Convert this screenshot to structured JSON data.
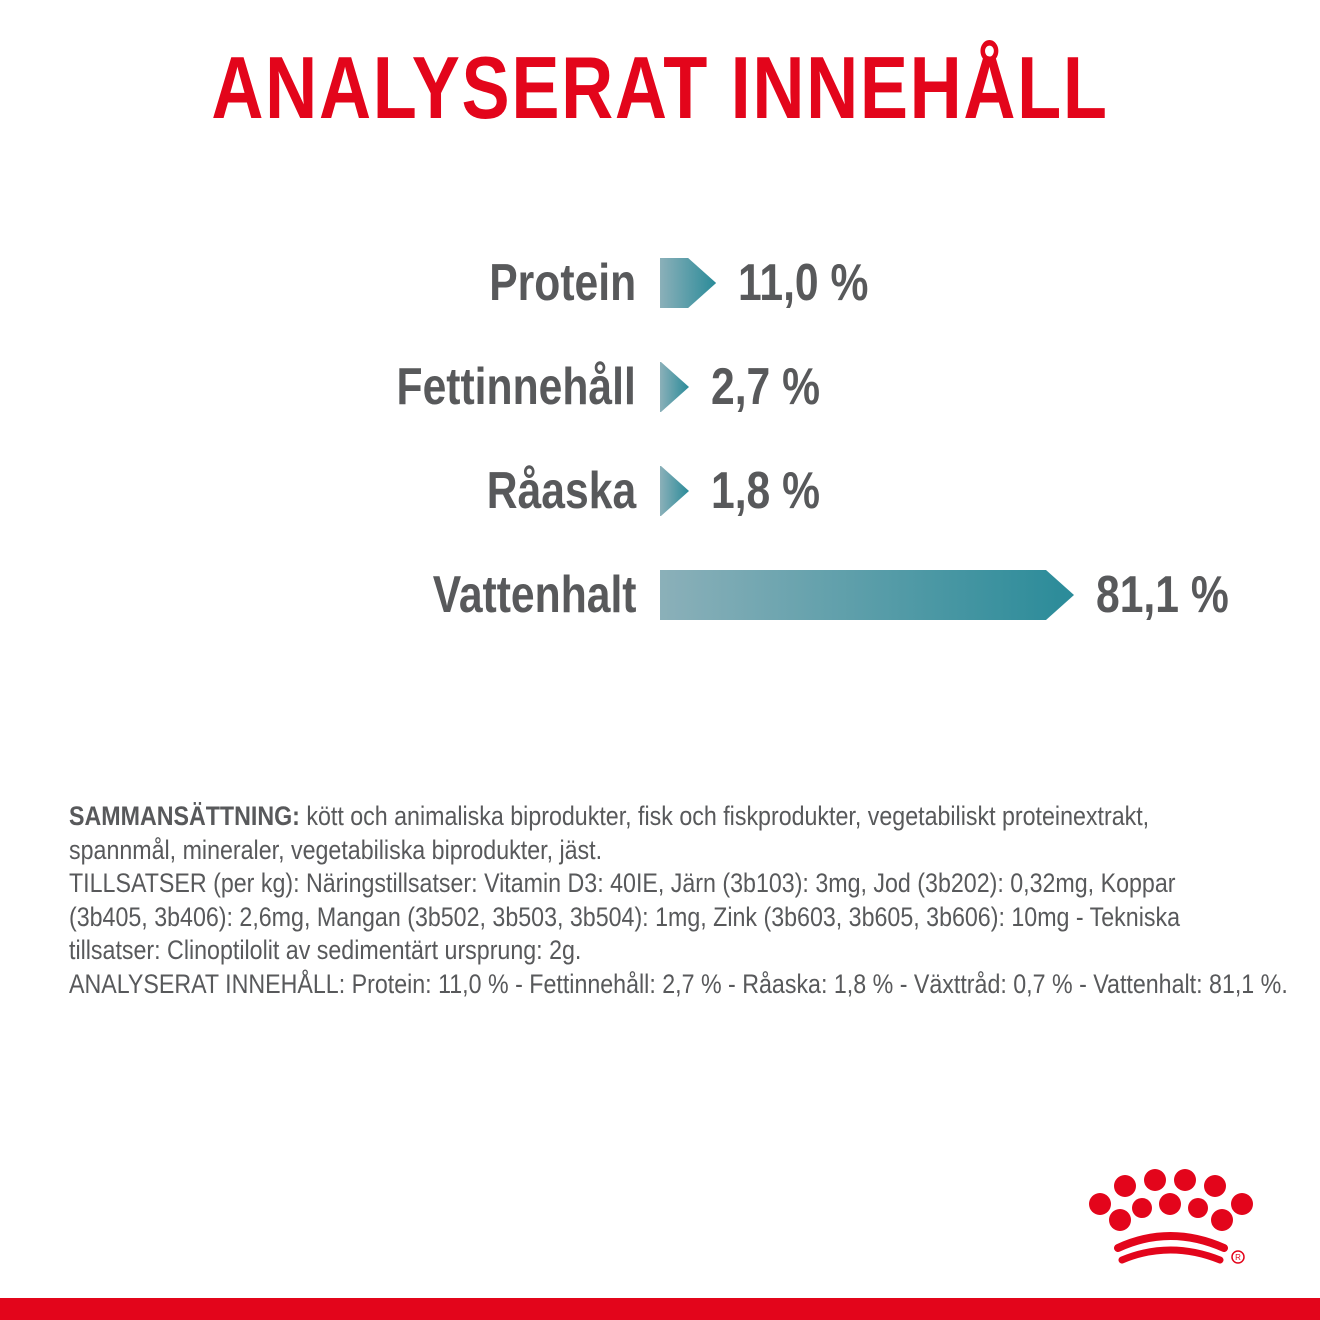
{
  "title": "ANALYSERAT INNEHÅLL",
  "colors": {
    "accent_red": "#e3051b",
    "text_gray": "#58595b",
    "bar_light": "#8bb0b9",
    "bar_dark": "#2a8b99"
  },
  "chart_data": {
    "type": "bar",
    "orientation": "horizontal",
    "title": "",
    "categories": [
      "Protein",
      "Fettinnehåll",
      "Råaska",
      "Vattenhalt"
    ],
    "values": [
      11.0,
      2.7,
      1.8,
      81.1
    ],
    "value_labels": [
      "11,0 %",
      "2,7 %",
      "1,8 %",
      "81,1 %"
    ],
    "unit": "%",
    "xlim": [
      0,
      81.1
    ],
    "grid": false,
    "legend": "none"
  },
  "composition": {
    "heading": "SAMMANSÄTTNING:",
    "lines": [
      " kött och animaliska biprodukter, fisk och fiskprodukter, vegetabiliskt proteinextrakt,",
      "spannmål, mineraler, vegetabiliska biprodukter, jäst.",
      "TILLSATSER (per kg): Näringstillsatser: Vitamin D3: 40IE, Järn (3b103): 3mg, Jod (3b202): 0,32mg, Koppar",
      "(3b405, 3b406): 2,6mg, Mangan (3b502, 3b503, 3b504): 1mg, Zink (3b603, 3b605, 3b606): 10mg - Tekniska",
      "tillsatser: Clinoptilolit av sedimentärt ursprung: 2g.",
      "ANALYSERAT INNEHÅLL: Protein: 11,0 % - Fettinnehåll: 2,7 % - Råaska: 1,8 % - Växttråd: 0,7 % - Vattenhalt: 81,1 %."
    ]
  },
  "logo": {
    "icon": "royal-crown-logo-icon"
  }
}
